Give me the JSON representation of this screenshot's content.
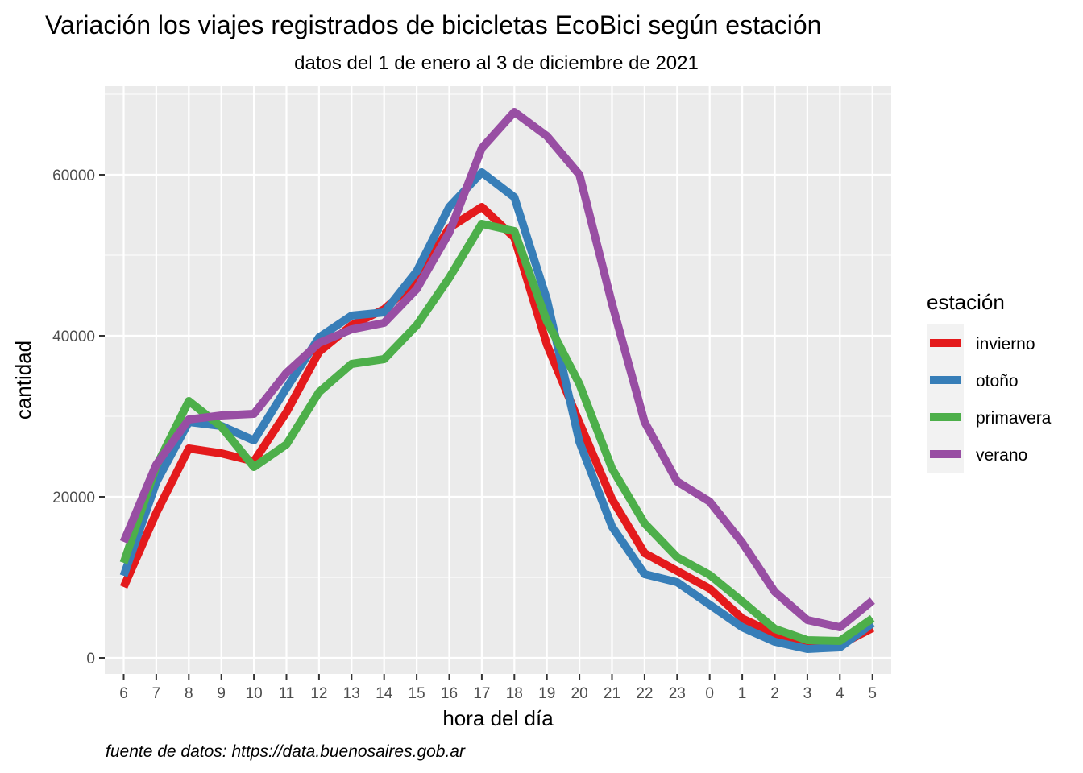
{
  "chart_data": {
    "type": "line",
    "title": "Variación los viajes registrados de bicicletas EcoBici según estación",
    "subtitle": "datos del 1 de enero al 3 de diciembre de 2021",
    "xlabel": "hora del día",
    "ylabel": "cantidad",
    "caption": "fuente de datos: https://data.buenosaires.gob.ar",
    "categories": [
      "6",
      "7",
      "8",
      "9",
      "10",
      "11",
      "12",
      "13",
      "14",
      "15",
      "16",
      "17",
      "18",
      "19",
      "20",
      "21",
      "22",
      "23",
      "0",
      "1",
      "2",
      "3",
      "4",
      "5"
    ],
    "ylim": [
      -2000,
      71000
    ],
    "yticks": [
      0,
      20000,
      40000,
      60000
    ],
    "ytick_labels": [
      "0",
      "20000",
      "40000",
      "60000"
    ],
    "grid": true,
    "legend": {
      "title": "estación",
      "position": "right"
    },
    "series": [
      {
        "name": "invierno",
        "color": "#E41A1C",
        "values": [
          8800,
          18000,
          26000,
          25400,
          24400,
          30500,
          38000,
          41300,
          43300,
          46900,
          53400,
          56000,
          52200,
          38900,
          29200,
          19700,
          13000,
          10800,
          8600,
          4900,
          3000,
          1900,
          1600,
          3700
        ]
      },
      {
        "name": "otoño",
        "color": "#377EB8",
        "values": [
          10200,
          21800,
          29300,
          28800,
          27000,
          33500,
          39800,
          42500,
          42900,
          48000,
          56000,
          60300,
          57200,
          44500,
          26800,
          16300,
          10400,
          9400,
          6600,
          3800,
          2000,
          1100,
          1300,
          4300
        ]
      },
      {
        "name": "primavera",
        "color": "#4DAF4A",
        "values": [
          11800,
          23800,
          31900,
          28700,
          23700,
          26500,
          33000,
          36500,
          37100,
          41300,
          47200,
          53900,
          53000,
          41800,
          34000,
          23500,
          16700,
          12500,
          10300,
          7000,
          3600,
          2200,
          2100,
          4900
        ]
      },
      {
        "name": "verano",
        "color": "#984EA3",
        "values": [
          14400,
          24000,
          29600,
          30100,
          30300,
          35400,
          39100,
          40800,
          41600,
          45800,
          52800,
          63300,
          67800,
          64800,
          60000,
          44000,
          29300,
          21900,
          19400,
          14300,
          8200,
          4700,
          3800,
          7100
        ]
      }
    ]
  }
}
